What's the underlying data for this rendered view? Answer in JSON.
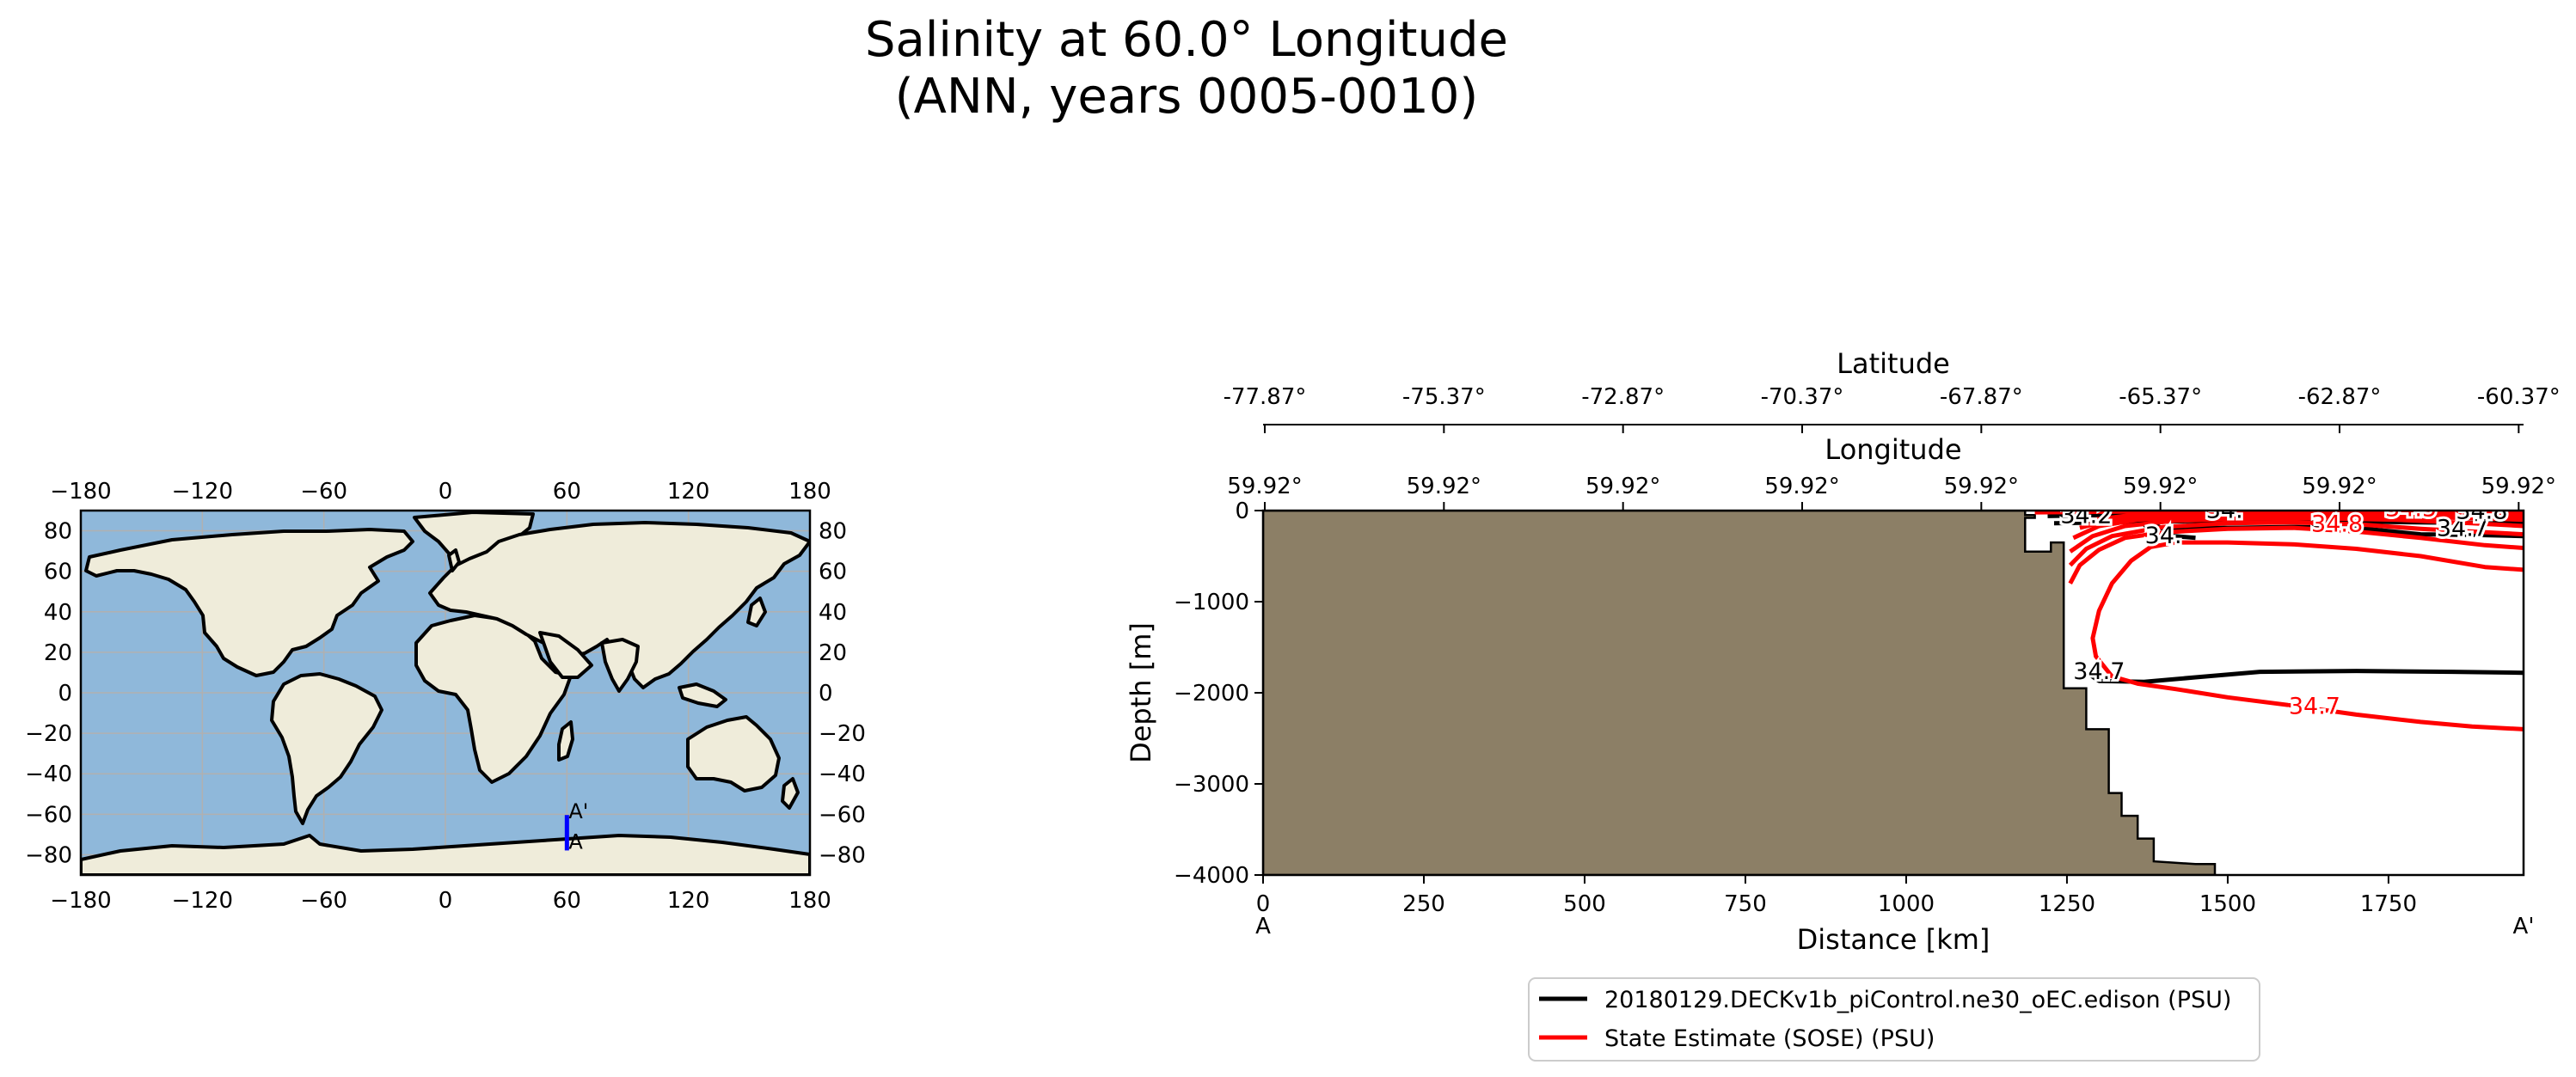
{
  "title": {
    "line1": "Salinity at 60.0° Longitude",
    "line2": "(ANN, years 0005-0010)"
  },
  "colors": {
    "ocean": "#8fb8da",
    "land": "#efecda",
    "transect": "#0000ff",
    "bathymetry": "#8c7f66",
    "model": "#000000",
    "obs": "#ff0000",
    "grid": "#b0b0b0"
  },
  "chart_data": [
    {
      "type": "map",
      "x_ticks": [
        "−180",
        "−120",
        "−60",
        "0",
        "60",
        "120",
        "180"
      ],
      "y_ticks": [
        "80",
        "60",
        "40",
        "20",
        "0",
        "−20",
        "−40",
        "−60",
        "−80"
      ],
      "xlim": [
        -180,
        180
      ],
      "ylim": [
        -90,
        90
      ],
      "grid": true,
      "transect": {
        "lon": 60,
        "lat_start": -77.87,
        "lat_end": -60.37,
        "start_label": "A",
        "end_label": "A'"
      }
    },
    {
      "type": "line",
      "xlabel": "Distance [km]",
      "ylabel": "Depth [m]",
      "xlim": [
        0,
        1960
      ],
      "ylim": [
        -4000,
        0
      ],
      "x_ticks": [
        0,
        250,
        500,
        750,
        1000,
        1250,
        1500,
        1750
      ],
      "y_ticks": [
        0,
        -1000,
        -2000,
        -3000,
        -4000
      ],
      "x_tick_labels": [
        "0",
        "250",
        "500",
        "750",
        "1000",
        "1250",
        "1500",
        "1750"
      ],
      "y_tick_labels": [
        "0",
        "−1000",
        "−2000",
        "−3000",
        "−4000"
      ],
      "start_label": "A",
      "end_label": "A'",
      "latitude_axis": {
        "label": "Latitude",
        "ticks": [
          "-77.87°",
          "-75.37°",
          "-72.87°",
          "-70.37°",
          "-67.87°",
          "-65.37°",
          "-62.87°",
          "-60.37°"
        ]
      },
      "longitude_axis": {
        "label": "Longitude",
        "ticks": [
          "59.92°",
          "59.92°",
          "59.92°",
          "59.92°",
          "59.92°",
          "59.92°",
          "59.92°",
          "59.92°"
        ]
      },
      "bathymetry": [
        [
          0,
          0
        ],
        [
          1185,
          0
        ],
        [
          1185,
          -50
        ],
        [
          1200,
          -50
        ],
        [
          1200,
          -80
        ],
        [
          1185,
          -80
        ],
        [
          1185,
          -450
        ],
        [
          1225,
          -450
        ],
        [
          1225,
          -350
        ],
        [
          1245,
          -350
        ],
        [
          1245,
          -1950
        ],
        [
          1280,
          -1950
        ],
        [
          1280,
          -2400
        ],
        [
          1315,
          -2400
        ],
        [
          1315,
          -3100
        ],
        [
          1335,
          -3100
        ],
        [
          1335,
          -3350
        ],
        [
          1360,
          -3350
        ],
        [
          1360,
          -3600
        ],
        [
          1385,
          -3600
        ],
        [
          1385,
          -3850
        ],
        [
          1450,
          -3880
        ],
        [
          1480,
          -3880
        ],
        [
          1480,
          -4000
        ],
        [
          0,
          -4000
        ]
      ],
      "series": [
        {
          "name": "20180129.DECKv1b_piControl.ne30_oEC.edison (PSU)",
          "contours": [
            {
              "level": 34.7,
              "points": [
                [
                  1285,
                  -1800
                ],
                [
                  1300,
                  -1870
                ],
                [
                  1370,
                  -1880
                ],
                [
                  1450,
                  -1830
                ],
                [
                  1550,
                  -1770
                ],
                [
                  1700,
                  -1760
                ],
                [
                  1850,
                  -1770
                ],
                [
                  1960,
                  -1780
                ]
              ]
            },
            {
              "level": 34.6,
              "points": [
                [
                  1370,
                  -100
                ],
                [
                  1400,
                  -200
                ],
                [
                  1500,
                  -190
                ],
                [
                  1600,
                  -180
                ],
                [
                  1700,
                  -190
                ],
                [
                  1800,
                  -260
                ],
                [
                  1900,
                  -270
                ],
                [
                  1960,
                  -280
                ]
              ]
            },
            {
              "level": 34.5,
              "points": [
                [
                  1370,
                  -150
                ],
                [
                  1385,
                  -260
                ],
                [
                  1450,
                  -300
                ]
              ]
            },
            {
              "level": 34.4,
              "points": [
                [
                  1230,
                  -140
                ],
                [
                  1300,
                  -130
                ],
                [
                  1400,
                  -120
                ],
                [
                  1500,
                  -110
                ],
                [
                  1600,
                  -110
                ],
                [
                  1700,
                  -120
                ],
                [
                  1800,
                  -130
                ],
                [
                  1960,
                  -140
                ]
              ]
            },
            {
              "level": 34.2,
              "points": [
                [
                  1220,
                  -60
                ],
                [
                  1300,
                  -50
                ],
                [
                  1400,
                  -40
                ],
                [
                  1500,
                  -40
                ],
                [
                  1600,
                  -45
                ],
                [
                  1700,
                  -50
                ],
                [
                  1800,
                  -55
                ],
                [
                  1960,
                  -60
                ]
              ]
            },
            {
              "level": 34.0,
              "points": [
                [
                  1230,
                  -20
                ],
                [
                  1400,
                  -15
                ],
                [
                  1600,
                  -10
                ],
                [
                  1800,
                  -15
                ],
                [
                  1960,
                  -18
                ]
              ]
            }
          ],
          "labels": [
            {
              "text": "34.7",
              "x": 1300,
              "y": -1850
            },
            {
              "text": "34.7",
              "x": 1865,
              "y": -280
            },
            {
              "text": "34.",
              "x": 1400,
              "y": -360
            },
            {
              "text": "34.2",
              "x": 1280,
              "y": -135
            },
            {
              "text": "34.",
              "x": 1495,
              "y": -80
            },
            {
              "text": "34.8",
              "x": 1895,
              "y": -90
            }
          ]
        },
        {
          "name": "State Estimate (SOSE) (PSU)",
          "contours": [
            {
              "level": 34.7,
              "points": [
                [
                  1960,
                  -2400
                ],
                [
                  1880,
                  -2370
                ],
                [
                  1800,
                  -2320
                ],
                [
                  1700,
                  -2240
                ],
                [
                  1600,
                  -2140
                ],
                [
                  1500,
                  -2050
                ],
                [
                  1420,
                  -1960
                ],
                [
                  1360,
                  -1900
                ],
                [
                  1320,
                  -1820
                ],
                [
                  1295,
                  -1600
                ],
                [
                  1290,
                  -1400
                ],
                [
                  1300,
                  -1100
                ],
                [
                  1320,
                  -800
                ],
                [
                  1350,
                  -550
                ],
                [
                  1380,
                  -400
                ],
                [
                  1420,
                  -350
                ],
                [
                  1500,
                  -350
                ],
                [
                  1600,
                  -370
                ],
                [
                  1700,
                  -420
                ],
                [
                  1800,
                  -500
                ],
                [
                  1900,
                  -620
                ],
                [
                  1960,
                  -650
                ]
              ]
            },
            {
              "level": 34.68,
              "points": [
                [
                  1255,
                  -800
                ],
                [
                  1270,
                  -600
                ],
                [
                  1300,
                  -430
                ],
                [
                  1340,
                  -300
                ],
                [
                  1400,
                  -240
                ],
                [
                  1500,
                  -200
                ],
                [
                  1600,
                  -190
                ],
                [
                  1700,
                  -230
                ],
                [
                  1800,
                  -300
                ],
                [
                  1900,
                  -380
                ],
                [
                  1960,
                  -410
                ]
              ]
            },
            {
              "level": 34.65,
              "points": [
                [
                  1255,
                  -600
                ],
                [
                  1280,
                  -420
                ],
                [
                  1320,
                  -280
                ],
                [
                  1400,
                  -180
                ],
                [
                  1500,
                  -140
                ],
                [
                  1600,
                  -130
                ],
                [
                  1700,
                  -150
                ],
                [
                  1800,
                  -200
                ],
                [
                  1960,
                  -260
                ]
              ]
            },
            {
              "level": 34.6,
              "points": [
                [
                  1255,
                  -450
                ],
                [
                  1290,
                  -280
                ],
                [
                  1340,
                  -170
                ],
                [
                  1420,
                  -110
                ],
                [
                  1520,
                  -90
                ],
                [
                  1640,
                  -85
                ],
                [
                  1760,
                  -100
                ],
                [
                  1880,
                  -140
                ],
                [
                  1960,
                  -170
                ]
              ]
            },
            {
              "level": 34.5,
              "points": [
                [
                  1260,
                  -300
                ],
                [
                  1300,
                  -170
                ],
                [
                  1360,
                  -100
                ],
                [
                  1450,
                  -70
                ],
                [
                  1560,
                  -55
                ],
                [
                  1680,
                  -55
                ],
                [
                  1800,
                  -70
                ],
                [
                  1960,
                  -100
                ]
              ]
            },
            {
              "level": 34.3,
              "points": [
                [
                  1270,
                  -190
                ],
                [
                  1320,
                  -100
                ],
                [
                  1400,
                  -55
                ],
                [
                  1520,
                  -35
                ],
                [
                  1660,
                  -30
                ],
                [
                  1800,
                  -40
                ],
                [
                  1960,
                  -60
                ]
              ]
            },
            {
              "level": 34.0,
              "points": [
                [
                  1280,
                  -110
                ],
                [
                  1350,
                  -50
                ],
                [
                  1460,
                  -25
                ],
                [
                  1600,
                  -15
                ],
                [
                  1760,
                  -15
                ],
                [
                  1960,
                  -30
                ]
              ]
            },
            {
              "level": 33.8,
              "points": [
                [
                  1200,
                  -20
                ],
                [
                  1400,
                  -8
                ],
                [
                  1600,
                  -5
                ],
                [
                  1800,
                  -6
                ],
                [
                  1960,
                  -10
                ]
              ]
            }
          ],
          "labels": [
            {
              "text": "34.7",
              "x": 1635,
              "y": -2230
            },
            {
              "text": "34.8",
              "x": 1670,
              "y": -230
            },
            {
              "text": "34.5",
              "x": 1785,
              "y": -60
            }
          ]
        }
      ],
      "legend": {
        "placement": "bottom",
        "entries": [
          "20180129.DECKv1b_piControl.ne30_oEC.edison (PSU)",
          "State Estimate (SOSE) (PSU)"
        ]
      }
    }
  ]
}
